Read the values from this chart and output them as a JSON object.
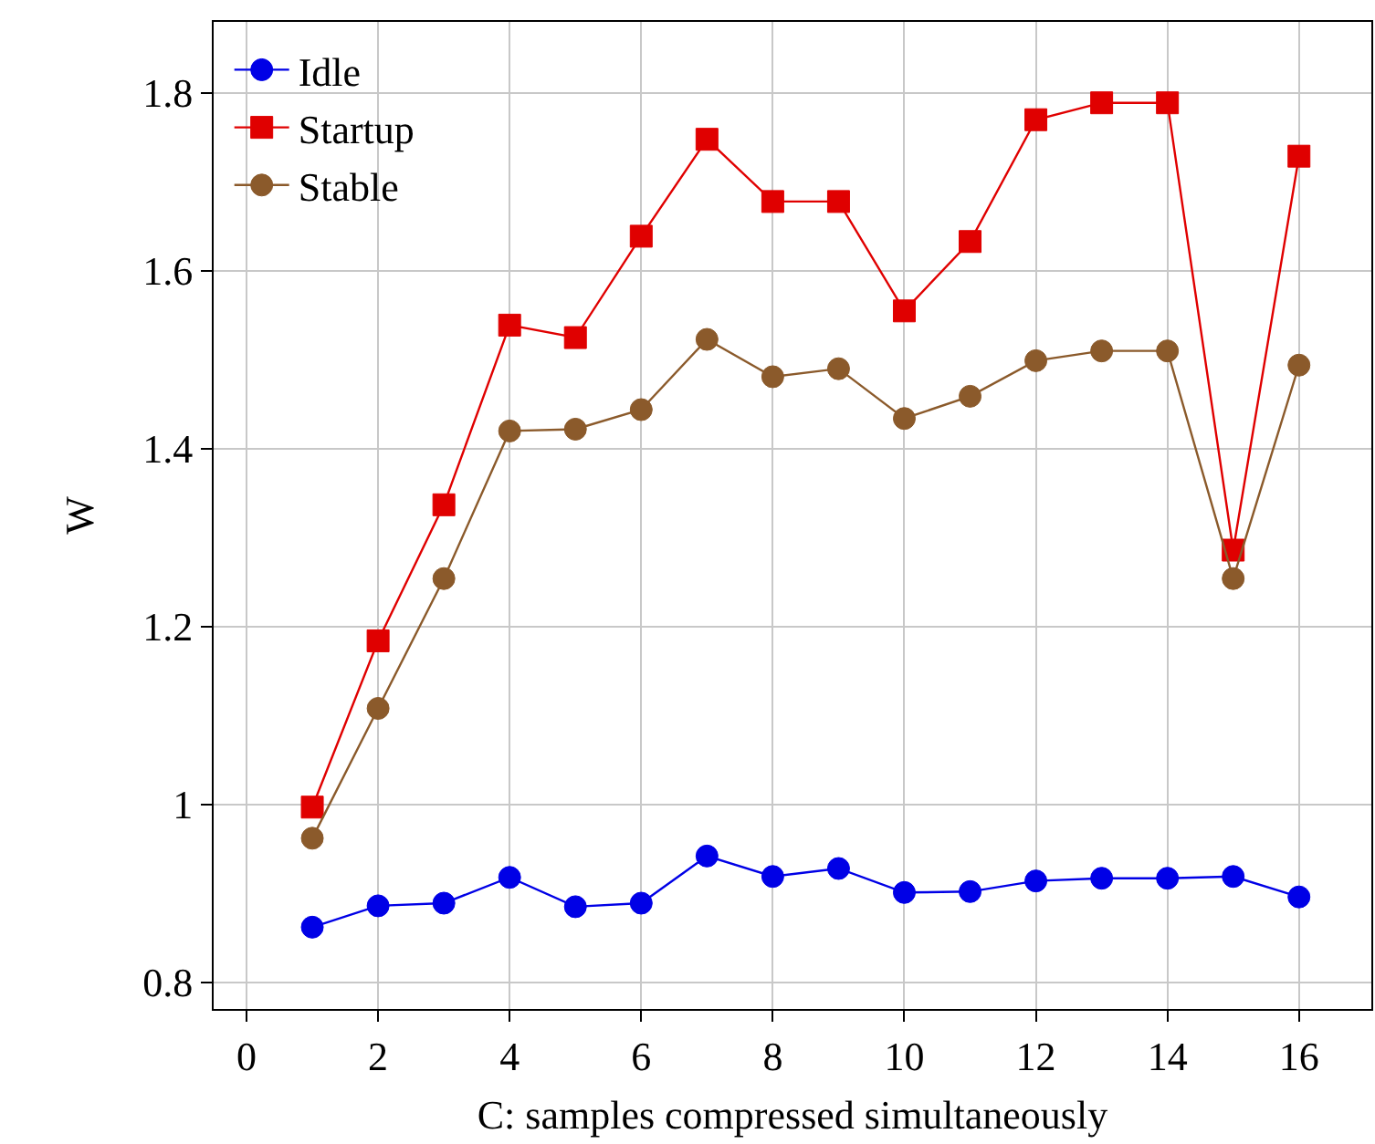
{
  "chart_data": {
    "type": "line",
    "xlabel": "C: samples compressed simultaneously",
    "ylabel": "W",
    "x": [
      1,
      2,
      3,
      4,
      5,
      6,
      7,
      8,
      9,
      10,
      11,
      12,
      13,
      14,
      15,
      16
    ],
    "series": [
      {
        "name": "Idle",
        "color": "#0000e6",
        "marker": "circle",
        "values": [
          0.862,
          0.886,
          0.889,
          0.918,
          0.885,
          0.889,
          0.942,
          0.919,
          0.928,
          0.901,
          0.902,
          0.914,
          0.917,
          0.917,
          0.919,
          0.896
        ]
      },
      {
        "name": "Startup",
        "color": "#e00000",
        "marker": "square",
        "values": [
          0.997,
          1.184,
          1.337,
          1.539,
          1.525,
          1.639,
          1.748,
          1.678,
          1.678,
          1.555,
          1.633,
          1.77,
          1.789,
          1.789,
          1.286,
          1.729
        ]
      },
      {
        "name": "Stable",
        "color": "#8b5a2b",
        "marker": "circle",
        "values": [
          0.962,
          1.108,
          1.254,
          1.42,
          1.422,
          1.444,
          1.523,
          1.481,
          1.49,
          1.434,
          1.459,
          1.499,
          1.51,
          1.51,
          1.254,
          1.494
        ]
      }
    ],
    "xlim": [
      -0.5,
      17.1
    ],
    "ylim": [
      0.77,
      1.88
    ],
    "xticks": [
      0,
      2,
      4,
      6,
      8,
      10,
      12,
      14,
      16
    ],
    "yticks": [
      0.8,
      1,
      1.2,
      1.4,
      1.6,
      1.8
    ],
    "grid": true,
    "legend": "top left",
    "line_style": "solid"
  }
}
